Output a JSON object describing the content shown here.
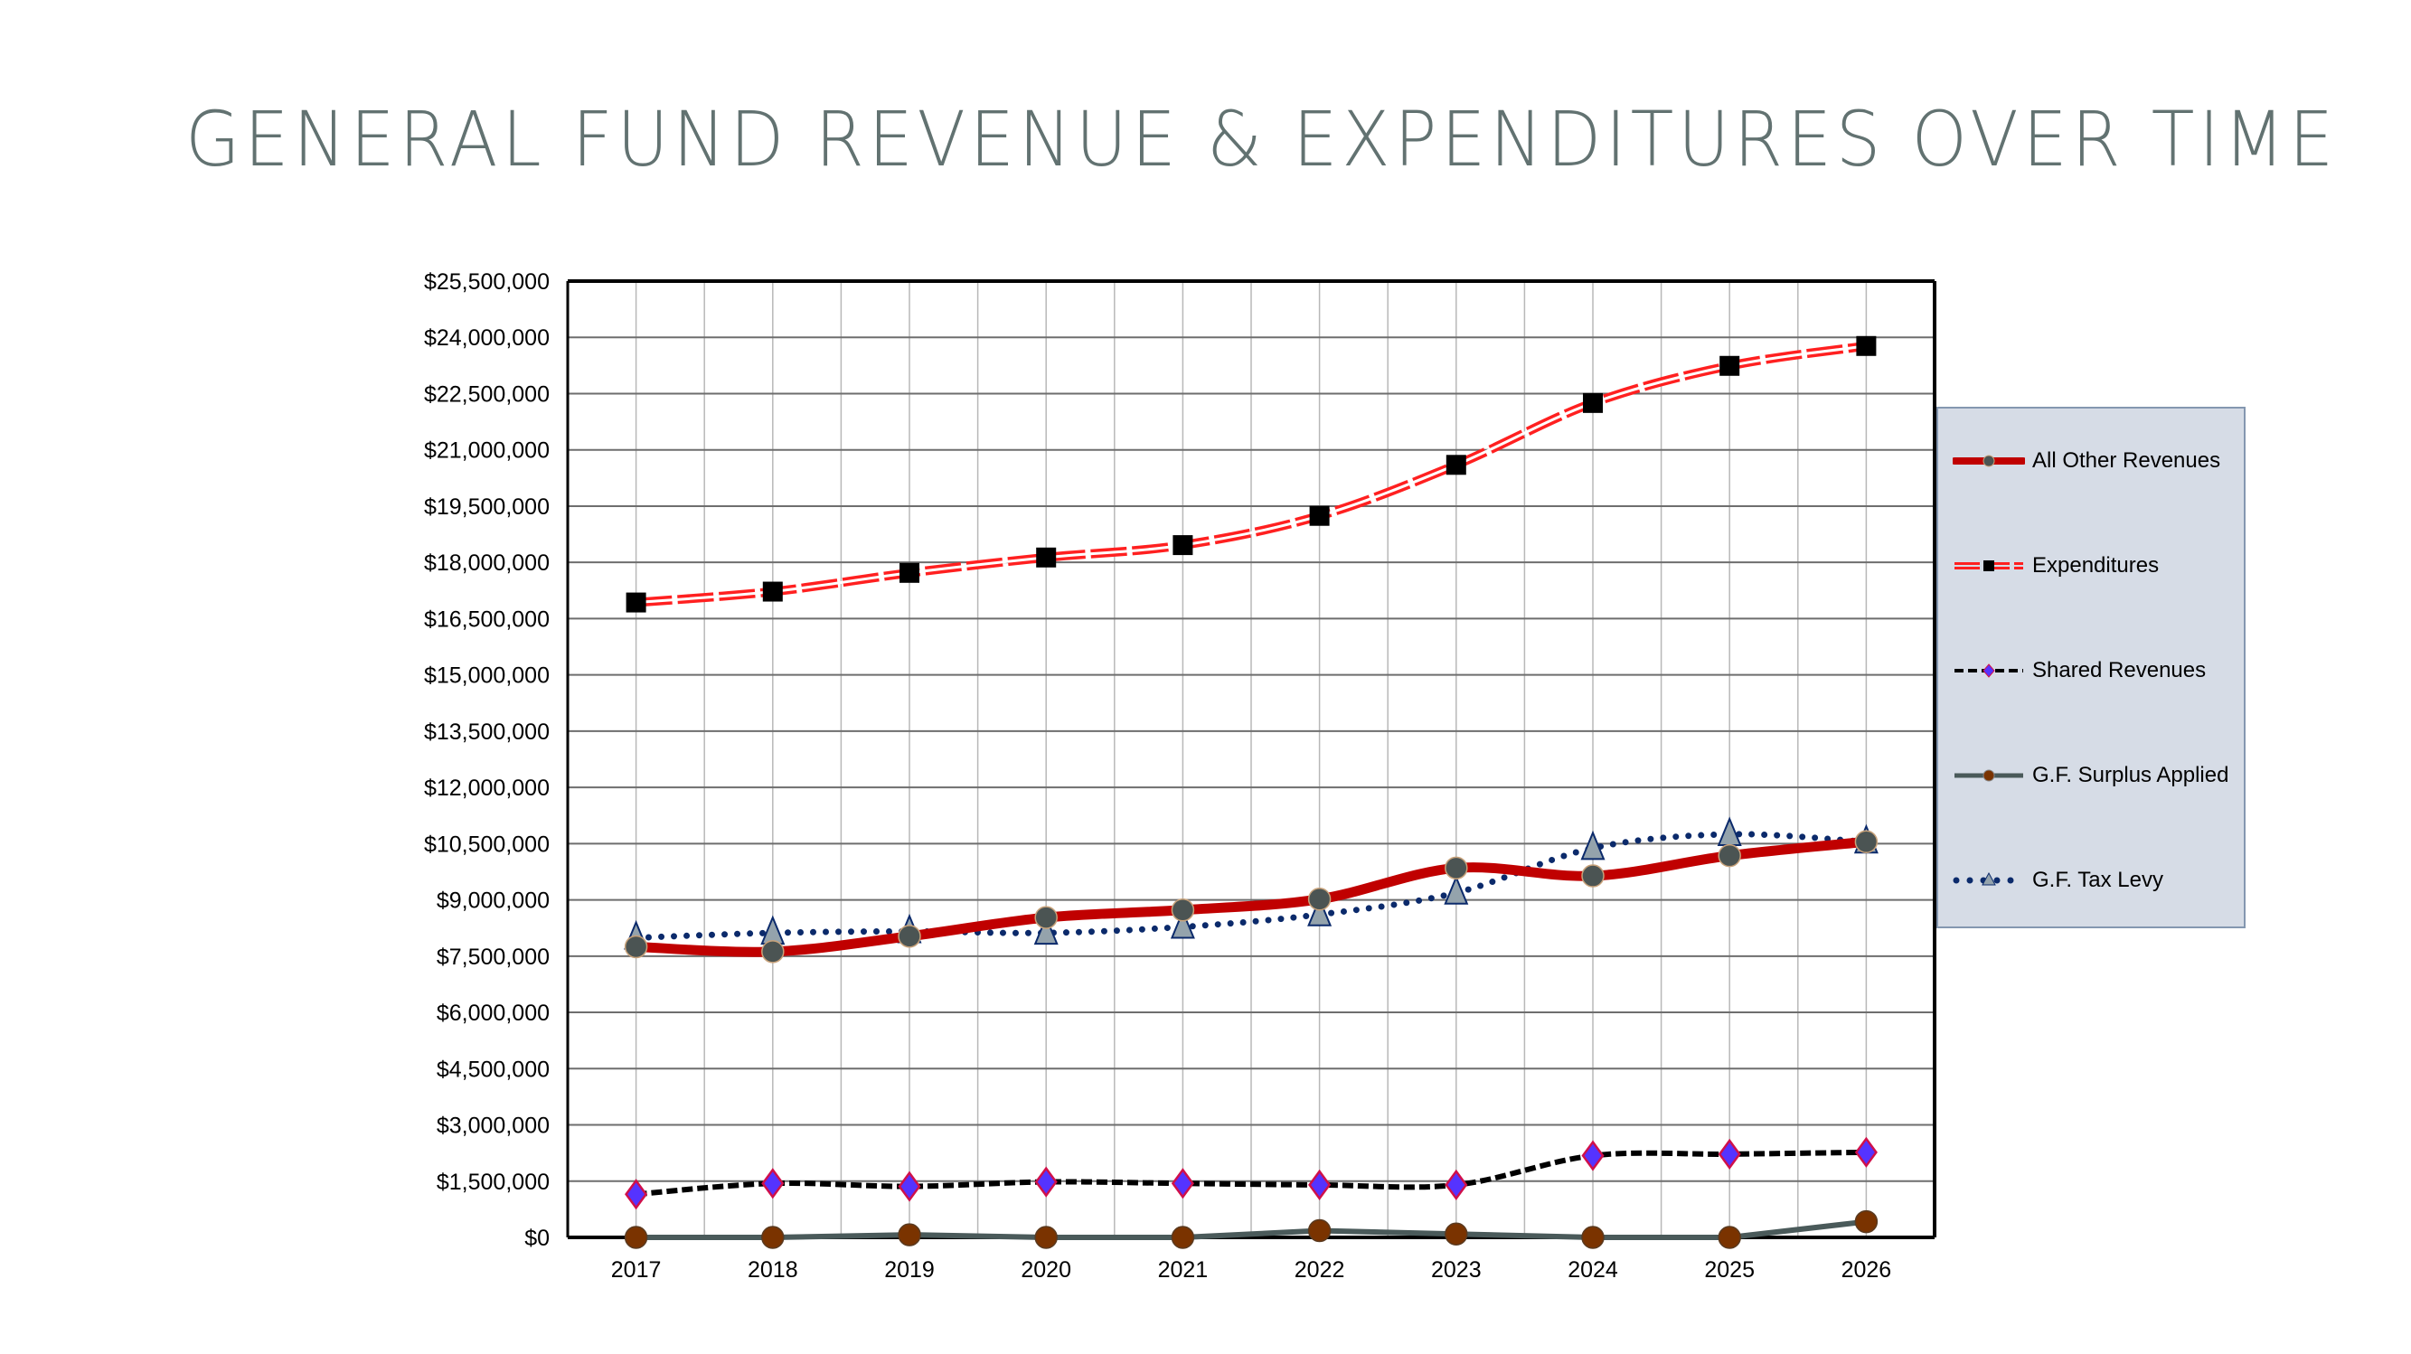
{
  "title": "GENERAL FUND REVENUE & EXPENDITURES OVER TIME",
  "chart_data": {
    "type": "line",
    "title": "GENERAL FUND REVENUE & EXPENDITURES OVER TIME",
    "xlabel": "",
    "ylabel": "",
    "categories": [
      "2017",
      "2018",
      "2019",
      "2020",
      "2021",
      "2022",
      "2023",
      "2024",
      "2025",
      "2026"
    ],
    "ylim": [
      0,
      25500000
    ],
    "ytick_step": 1500000,
    "yticks": [
      "$0",
      "$1,500,000",
      "$3,000,000",
      "$4,500,000",
      "$6,000,000",
      "$7,500,000",
      "$9,000,000",
      "$10,500,000",
      "$12,000,000",
      "$13,500,000",
      "$15,000,000",
      "$16,500,000",
      "$18,000,000",
      "$19,500,000",
      "$21,000,000",
      "$22,500,000",
      "$24,000,000",
      "$25,500,000"
    ],
    "grid": true,
    "legend_position": "right",
    "series": [
      {
        "name": "All Other Revenues",
        "color": "#c00000",
        "marker": "circle",
        "marker_color": "#4b5453",
        "style": "solid-thick",
        "values": [
          7750000,
          7620000,
          8030000,
          8530000,
          8730000,
          9020000,
          9850000,
          9640000,
          10180000,
          10550000
        ]
      },
      {
        "name": "Expenditures",
        "color": "#ff2020",
        "marker": "square",
        "marker_color": "#000000",
        "style": "double-dashed",
        "values": [
          16930000,
          17220000,
          17720000,
          18130000,
          18460000,
          19240000,
          20600000,
          22250000,
          23240000,
          23770000
        ]
      },
      {
        "name": "Shared Revenues",
        "color": "#000000",
        "marker": "diamond",
        "marker_color": "#5533ff",
        "style": "dashed",
        "values": [
          1150000,
          1440000,
          1360000,
          1480000,
          1440000,
          1400000,
          1400000,
          2180000,
          2220000,
          2270000
        ]
      },
      {
        "name": "G.F. Surplus Applied",
        "color": "#4a5a5a",
        "marker": "circle",
        "marker_color": "#7a3300",
        "style": "solid",
        "values": [
          0,
          0,
          70000,
          0,
          0,
          180000,
          90000,
          0,
          0,
          420000
        ]
      },
      {
        "name": "G.F. Tax Levy",
        "color": "#0b2a6b",
        "marker": "triangle",
        "marker_color": "#94a3ac",
        "style": "dotted",
        "values": [
          7990000,
          8120000,
          8160000,
          8120000,
          8280000,
          8610000,
          9190000,
          10380000,
          10750000,
          10550000
        ]
      }
    ]
  }
}
